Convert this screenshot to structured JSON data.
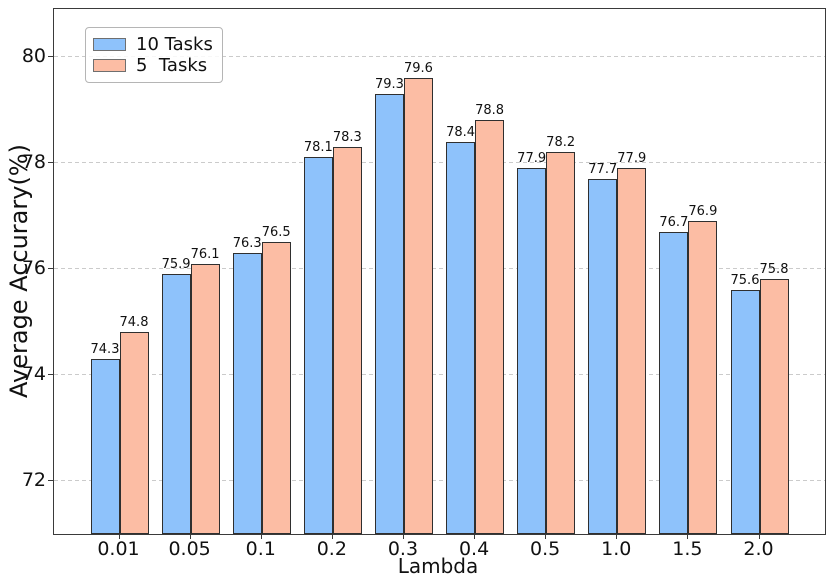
{
  "chart_data": {
    "type": "bar",
    "title": "",
    "xlabel": "Lambda",
    "ylabel": "Average Accurary(%)",
    "categories": [
      "0.01",
      "0.05",
      "0.1",
      "0.2",
      "0.3",
      "0.4",
      "0.5",
      "1.0",
      "1.5",
      "2.0"
    ],
    "series": [
      {
        "name": "10 Tasks",
        "color": "#8EC2FB",
        "values": [
          74.3,
          75.9,
          76.3,
          78.1,
          79.3,
          78.4,
          77.9,
          77.7,
          76.7,
          75.6
        ]
      },
      {
        "name": "5  Tasks",
        "color": "#FCBDA4",
        "values": [
          74.8,
          76.1,
          76.5,
          78.3,
          79.6,
          78.8,
          78.2,
          77.9,
          76.9,
          75.8
        ]
      }
    ],
    "yticks": [
      72,
      74,
      76,
      78,
      80
    ],
    "ylim": [
      71,
      80.9
    ],
    "grid": {
      "axis": "y",
      "style": "dashed",
      "color": "#cbcbcb"
    },
    "legend_position": "upper-left",
    "bar_edge_color": "#2f2f2f",
    "value_labels_shown": true,
    "value_label_format": "one-decimal"
  },
  "colors": {
    "background": "#ffffff",
    "spine": "#3a3a3a",
    "text": "#111111",
    "series_blue": "#8EC2FB",
    "series_salmon": "#FCBDA4"
  }
}
